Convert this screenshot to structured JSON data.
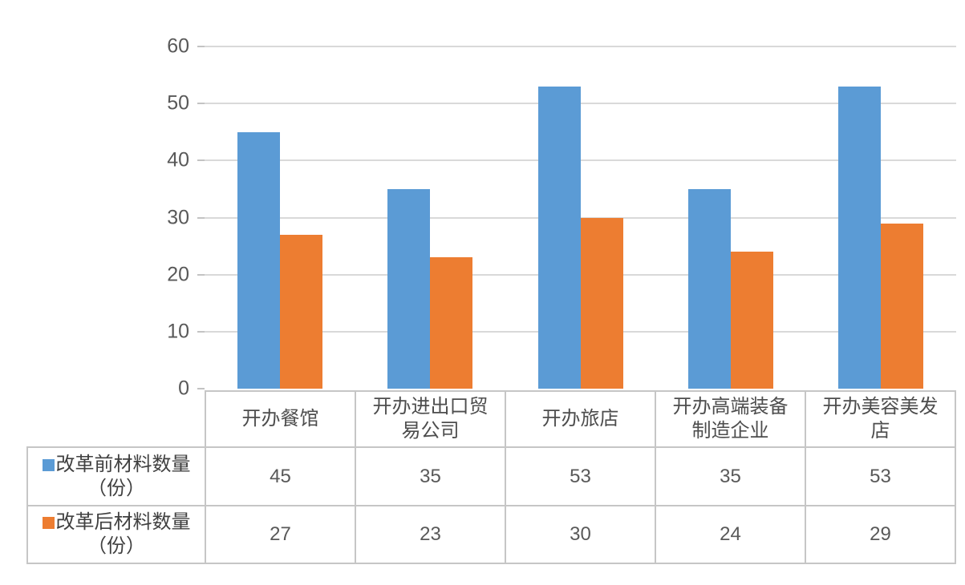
{
  "chart_data": {
    "type": "bar",
    "title": "",
    "xlabel": "",
    "ylabel": "",
    "categories": [
      "开办餐馆",
      "开办进出口贸\n易公司",
      "开办旅店",
      "开办高端装备\n制造企业",
      "开办美容美发\n店"
    ],
    "series": [
      {
        "name": "改革前材料数量\n（份）",
        "color": "#5b9bd5",
        "values": [
          45,
          35,
          53,
          35,
          53
        ]
      },
      {
        "name": "改革后材料数量\n（份）",
        "color": "#ed7d31",
        "values": [
          27,
          23,
          30,
          24,
          29
        ]
      }
    ],
    "ylim": [
      0,
      60
    ],
    "yticks": [
      0,
      10,
      20,
      30,
      40,
      50,
      60
    ],
    "grid": true,
    "legend_position": "table-rows-left",
    "colors": {
      "series_before": "#5b9bd5",
      "series_after": "#ed7d31",
      "gridline": "#d9d9d9",
      "table_border": "#c6c6c6",
      "text": "#595959"
    }
  }
}
